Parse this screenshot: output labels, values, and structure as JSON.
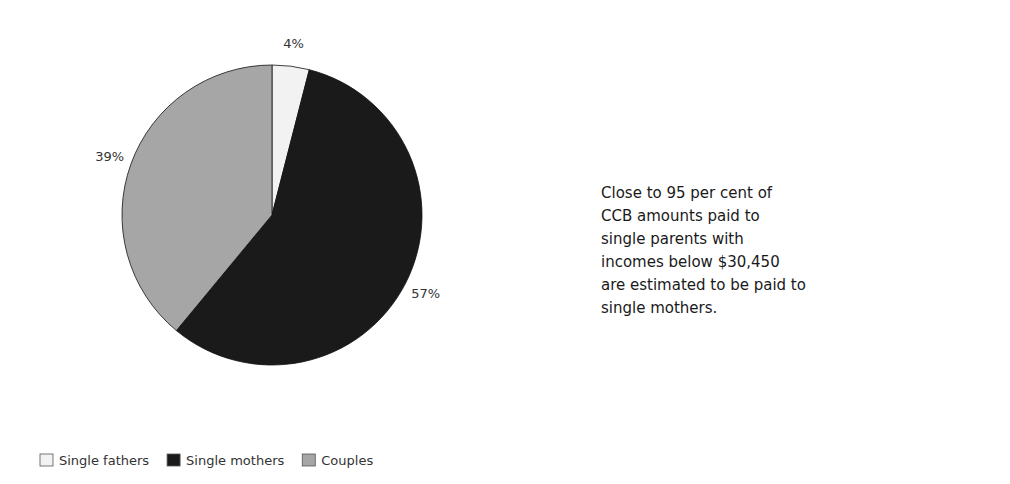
{
  "chart_data": {
    "type": "pie",
    "categories": [
      "Single fathers",
      "Single mothers",
      "Couples"
    ],
    "values": [
      4,
      57,
      39
    ],
    "value_labels": [
      "4%",
      "57%",
      "39%"
    ],
    "colors": [
      "#f2f2f2",
      "#1a1a1a",
      "#a6a6a6"
    ],
    "data_labels": true,
    "legend": "lower left",
    "annotation": "Close to 95 per cent of\nCCB amounts paid to\nsingle parents with\nincomes below $30,450\nare estimated to be paid to\nsingle mothers."
  }
}
